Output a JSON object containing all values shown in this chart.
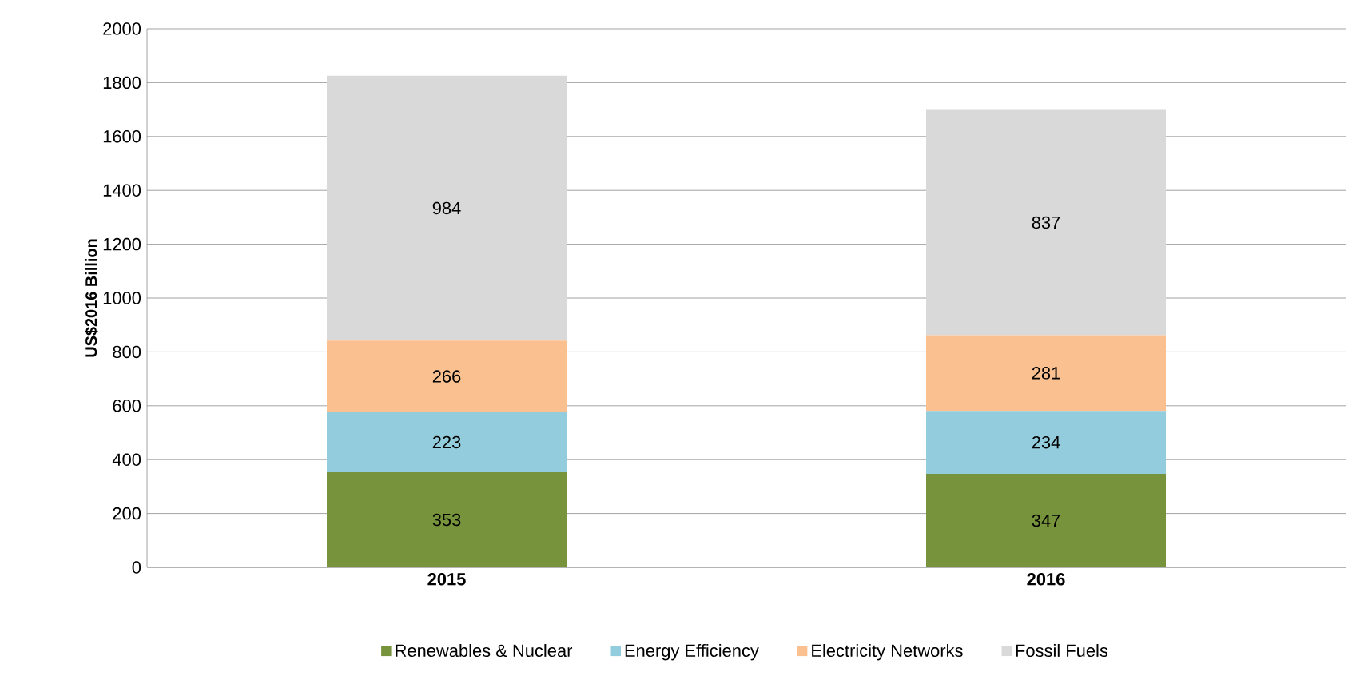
{
  "chart_data": {
    "type": "bar",
    "stacked": true,
    "ylabel": "US$2016 Billion",
    "categories": [
      "2015",
      "2016"
    ],
    "series": [
      {
        "name": "Renewables & Nuclear",
        "color": "#77933c",
        "values": [
          353,
          347
        ]
      },
      {
        "name": "Energy Efficiency",
        "color": "#93cddd",
        "values": [
          223,
          234
        ]
      },
      {
        "name": "Electricity Networks",
        "color": "#fac090",
        "values": [
          266,
          281
        ]
      },
      {
        "name": "Fossil Fuels",
        "color": "#d9d9d9",
        "values": [
          984,
          837
        ]
      }
    ],
    "ylim": [
      0,
      2000
    ],
    "yticks": [
      0,
      200,
      400,
      600,
      800,
      1000,
      1200,
      1400,
      1600,
      1800,
      2000
    ],
    "grid": "y",
    "legend": "bottom",
    "data_labels": true
  }
}
